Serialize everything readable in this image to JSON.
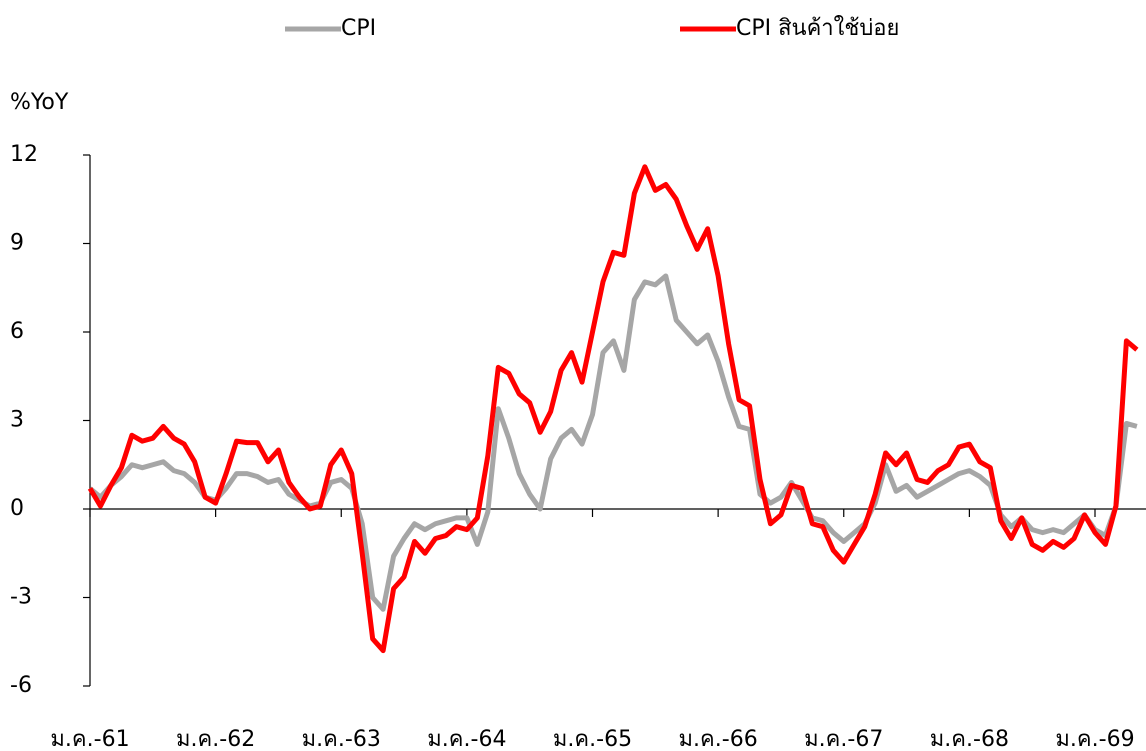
{
  "chart_data": {
    "type": "line",
    "y_label": "%YoY",
    "categories": [
      "ม.ค.-61",
      null,
      null,
      null,
      null,
      null,
      null,
      null,
      null,
      null,
      null,
      null,
      "ม.ค.-62",
      null,
      null,
      null,
      null,
      null,
      null,
      null,
      null,
      null,
      null,
      null,
      "ม.ค.-63",
      null,
      null,
      null,
      null,
      null,
      null,
      null,
      null,
      null,
      null,
      null,
      "ม.ค.-64",
      null,
      null,
      null,
      null,
      null,
      null,
      null,
      null,
      null,
      null,
      null,
      "ม.ค.-65",
      null,
      null,
      null,
      null,
      null,
      null,
      null,
      null,
      null,
      null,
      null,
      "ม.ค.-66",
      null,
      null,
      null,
      null,
      null,
      null,
      null,
      null,
      null,
      null,
      null,
      "ม.ค.-67",
      null,
      null,
      null,
      null,
      null,
      null,
      null,
      null,
      null,
      null,
      null,
      "ม.ค.-68",
      null,
      null,
      null,
      null,
      null,
      null,
      null,
      null,
      null,
      null,
      null,
      "ม.ค.-69",
      null,
      null,
      null,
      null
    ],
    "series": [
      {
        "name": "CPI",
        "color": "#a6a6a6",
        "values": [
          0.7,
          0.4,
          0.8,
          1.1,
          1.5,
          1.4,
          1.5,
          1.6,
          1.3,
          1.2,
          0.9,
          0.4,
          0.3,
          0.7,
          1.2,
          1.2,
          1.1,
          0.9,
          1.0,
          0.5,
          0.3,
          0.1,
          0.2,
          0.9,
          1.0,
          0.7,
          -0.5,
          -3.0,
          -3.4,
          -1.6,
          -1.0,
          -0.5,
          -0.7,
          -0.5,
          -0.4,
          -0.3,
          -0.3,
          -1.2,
          -0.1,
          3.4,
          2.4,
          1.2,
          0.5,
          0.0,
          1.7,
          2.4,
          2.7,
          2.2,
          3.2,
          5.3,
          5.7,
          4.7,
          7.1,
          7.7,
          7.6,
          7.9,
          6.4,
          6.0,
          5.6,
          5.9,
          5.0,
          3.8,
          2.8,
          2.7,
          0.5,
          0.2,
          0.4,
          0.9,
          0.3,
          -0.3,
          -0.4,
          -0.8,
          -1.1,
          -0.8,
          -0.5,
          0.2,
          1.5,
          0.6,
          0.8,
          0.4,
          0.6,
          0.8,
          1.0,
          1.2,
          1.3,
          1.1,
          0.8,
          -0.2,
          -0.6,
          -0.3,
          -0.7,
          -0.8,
          -0.7,
          -0.8,
          -0.5,
          -0.2,
          -0.7,
          -0.9,
          0.1,
          2.9,
          2.8
        ]
      },
      {
        "name": "CPI สินค้าใช้บ่อย",
        "color": "#ff0000",
        "values": [
          0.7,
          0.1,
          0.8,
          1.4,
          2.5,
          2.3,
          2.4,
          2.8,
          2.4,
          2.2,
          1.6,
          0.4,
          0.2,
          1.2,
          2.3,
          2.25,
          2.25,
          1.6,
          2.0,
          0.9,
          0.4,
          0.0,
          0.1,
          1.5,
          2.0,
          1.2,
          -1.5,
          -4.4,
          -4.8,
          -2.7,
          -2.3,
          -1.1,
          -1.5,
          -1.0,
          -0.9,
          -0.6,
          -0.7,
          -0.3,
          1.8,
          4.8,
          4.6,
          3.9,
          3.6,
          2.6,
          3.3,
          4.7,
          5.3,
          4.3,
          6.0,
          7.7,
          8.7,
          8.6,
          10.7,
          11.6,
          10.8,
          11.0,
          10.5,
          9.6,
          8.8,
          9.5,
          7.9,
          5.6,
          3.7,
          3.5,
          1.0,
          -0.5,
          -0.2,
          0.8,
          0.7,
          -0.5,
          -0.6,
          -1.4,
          -1.8,
          -1.2,
          -0.6,
          0.5,
          1.9,
          1.5,
          1.9,
          1.0,
          0.9,
          1.3,
          1.5,
          2.1,
          2.2,
          1.6,
          1.4,
          -0.4,
          -1.0,
          -0.3,
          -1.2,
          -1.4,
          -1.1,
          -1.3,
          -1.0,
          -0.2,
          -0.8,
          -1.2,
          0.1,
          5.7,
          5.4
        ]
      }
    ],
    "ylim": [
      -6,
      12
    ],
    "yticks": [
      -6,
      -3,
      0,
      3,
      6,
      9,
      12
    ],
    "legend": "top"
  }
}
